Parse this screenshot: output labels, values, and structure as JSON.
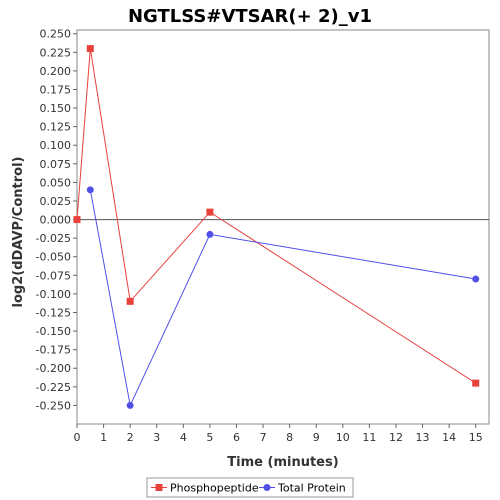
{
  "chart_data": {
    "type": "line",
    "title": "NGTLSS#VTSAR(+ 2)_v1",
    "xlabel": "Time (minutes)",
    "ylabel": "log2(dDAVP/Control)",
    "xlim": [
      0,
      15.5
    ],
    "ylim": [
      -0.275,
      0.255
    ],
    "x_ticks": [
      0,
      1,
      2,
      3,
      4,
      5,
      6,
      7,
      8,
      9,
      10,
      11,
      12,
      13,
      14,
      15
    ],
    "y_ticks": [
      0.25,
      0.225,
      0.2,
      0.175,
      0.15,
      0.125,
      0.1,
      0.075,
      0.05,
      0.025,
      0.0,
      -0.025,
      -0.05,
      -0.075,
      -0.1,
      -0.125,
      -0.15,
      -0.175,
      -0.2,
      -0.225,
      -0.25
    ],
    "x_tick_labels": [
      "0",
      "1",
      "2",
      "3",
      "4",
      "5",
      "6",
      "7",
      "8",
      "9",
      "10",
      "11",
      "12",
      "13",
      "14",
      "15"
    ],
    "y_tick_labels": [
      "0.250",
      "0.225",
      "0.200",
      "0.175",
      "0.150",
      "0.125",
      "0.100",
      "0.075",
      "0.050",
      "0.025",
      "0.000",
      "-0.025",
      "-0.050",
      "-0.075",
      "-0.100",
      "-0.125",
      "-0.150",
      "-0.175",
      "-0.200",
      "-0.225",
      "-0.250"
    ],
    "zero_line": true,
    "legend_position": "bottom",
    "series": [
      {
        "name": "Phosphopeptide",
        "color": "#e8413c",
        "marker": "square",
        "x": [
          0,
          0.5,
          2,
          5,
          15
        ],
        "y": [
          0.0,
          0.23,
          -0.11,
          0.01,
          -0.22
        ]
      },
      {
        "name": "Total Protein",
        "color": "#5050e8",
        "marker": "circle",
        "x": [
          0.5,
          2,
          5,
          15
        ],
        "y": [
          0.04,
          -0.25,
          -0.02,
          -0.08
        ]
      }
    ]
  }
}
